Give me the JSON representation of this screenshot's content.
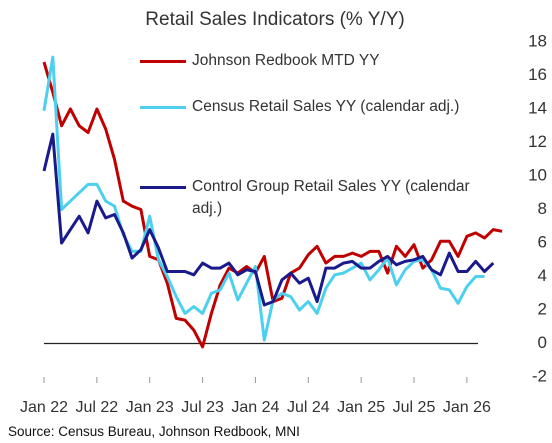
{
  "chart_data": {
    "type": "line",
    "title": "Retail Sales Indicators (% Y/Y)",
    "source": "Source: Census Bureau, Johnson Redbook, MNI",
    "categories": [
      "Jan 22",
      null,
      null,
      null,
      null,
      null,
      "Jul 22",
      null,
      null,
      null,
      null,
      null,
      "Jan 23",
      null,
      null,
      null,
      null,
      null,
      "Jul 23",
      null,
      null,
      null,
      null,
      null,
      "Jan 24",
      null,
      null,
      null,
      null,
      null,
      "Jul 24",
      null,
      null,
      null,
      null,
      null,
      "Jan 25",
      null,
      null,
      null,
      null,
      null,
      "Jul 25",
      null,
      null,
      null,
      null,
      null,
      "Jan 26",
      null,
      null,
      null,
      null
    ],
    "ylim": [
      -2,
      18
    ],
    "yticks": [
      -2,
      0,
      2,
      4,
      6,
      8,
      10,
      12,
      14,
      16,
      18
    ],
    "grid": false,
    "series": [
      {
        "name": "Johnson Redbook MTD YY",
        "color": "#c00000",
        "values": [
          16.8,
          15,
          13,
          14,
          13,
          12.6,
          14,
          12.8,
          11,
          8.5,
          8.2,
          8,
          5.2,
          5,
          3.6,
          1.5,
          1.4,
          0.8,
          -0.2,
          1.8,
          3.5,
          4.5,
          4.2,
          4.6,
          4.2,
          5.2,
          2.5,
          2.7,
          4.2,
          4.5,
          5.3,
          5.8,
          4.8,
          5.2,
          5.2,
          5.4,
          5.2,
          5.5,
          5.5,
          4.2,
          5.8,
          5.2,
          5.9,
          4.5,
          5,
          6.1,
          6.1,
          5.2,
          6.4,
          6.6,
          6.3,
          6.8,
          6.7
        ]
      },
      {
        "name": "Census Retail Sales YY (calendar adj.)",
        "color": "#4dd0ee",
        "values": [
          13.9,
          17.1,
          8,
          8.5,
          9,
          9.5,
          9.5,
          8.5,
          8.2,
          6.5,
          5.5,
          5.5,
          7.6,
          5,
          4,
          2.8,
          1.8,
          2.2,
          1.8,
          3,
          3.2,
          4.2,
          2.6,
          3.6,
          4.6,
          0.2,
          2.6,
          3,
          2.8,
          2,
          2.5,
          1.8,
          3.3,
          4.1,
          4.2,
          4.5,
          4.8,
          3.8,
          4.4,
          5.1,
          3.5,
          4.4,
          4.9,
          5,
          4.4,
          3.3,
          3.2,
          2.4,
          3.4,
          4,
          4,
          null,
          null
        ]
      },
      {
        "name": "Control Group Retail Sales YY (calendar adj.)",
        "color": "#1a1a8c",
        "values": [
          10.3,
          12.5,
          6,
          6.8,
          7.6,
          6.6,
          8.5,
          7.5,
          7.7,
          6.6,
          5.1,
          5.6,
          6.8,
          5.7,
          4.3,
          4.3,
          4.3,
          4.1,
          4.8,
          4.5,
          4.5,
          4.8,
          4.1,
          4.4,
          4.3,
          2.3,
          2.5,
          3.8,
          4.2,
          3.6,
          3.9,
          2.5,
          4.5,
          4.5,
          4.8,
          4.9,
          4.5,
          4.5,
          4.9,
          5.2,
          4.7,
          4.9,
          5,
          5.2,
          4.4,
          4.1,
          5.4,
          4.3,
          4.3,
          4.9,
          4.3,
          4.8,
          null
        ]
      }
    ]
  }
}
